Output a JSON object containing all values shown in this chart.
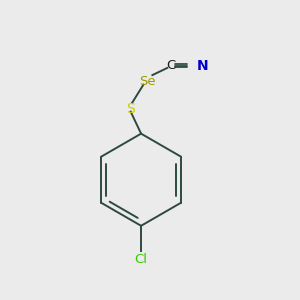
{
  "background_color": "#ebebeb",
  "bond_color": "#2d4a3e",
  "se_color": "#9b9b00",
  "s_color": "#cccc00",
  "n_color": "#0000cc",
  "cl_color": "#33cc00",
  "c_color": "#1a1a1a",
  "line_width": 1.4,
  "figsize": [
    3.0,
    3.0
  ],
  "dpi": 100,
  "xlim": [
    0,
    10
  ],
  "ylim": [
    0,
    10
  ]
}
